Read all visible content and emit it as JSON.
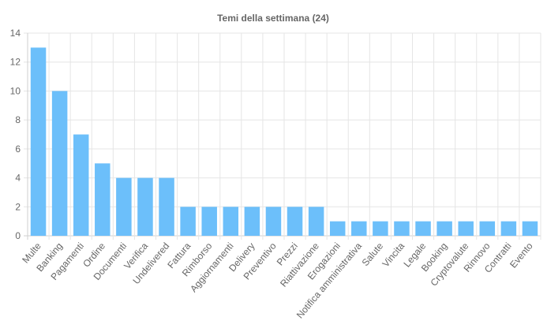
{
  "chart_data": {
    "type": "bar",
    "title": "Temi della settimana (24)",
    "xlabel": "",
    "ylabel": "",
    "ylim": [
      0,
      14
    ],
    "y_ticks": [
      0,
      2,
      4,
      6,
      8,
      10,
      12,
      14
    ],
    "grid": true,
    "legend": "none",
    "bar_color": "#6cbffa",
    "categories": [
      "Multe",
      "Banking",
      "Pagamenti",
      "Ordine",
      "Documenti",
      "Verifica",
      "Undelivered",
      "Fattura",
      "Rimborso",
      "Aggiornamenti",
      "Delivery",
      "Preventivo",
      "Prezzi",
      "Riattivazione",
      "Erogazioni",
      "Notifica amministrativa",
      "Salute",
      "Vincita",
      "Legale",
      "Booking",
      "Cryptovalute",
      "Rinnovo",
      "Contratti",
      "Evento"
    ],
    "values": [
      13,
      10,
      7,
      5,
      4,
      4,
      4,
      2,
      2,
      2,
      2,
      2,
      2,
      2,
      1,
      1,
      1,
      1,
      1,
      1,
      1,
      1,
      1,
      1
    ]
  }
}
